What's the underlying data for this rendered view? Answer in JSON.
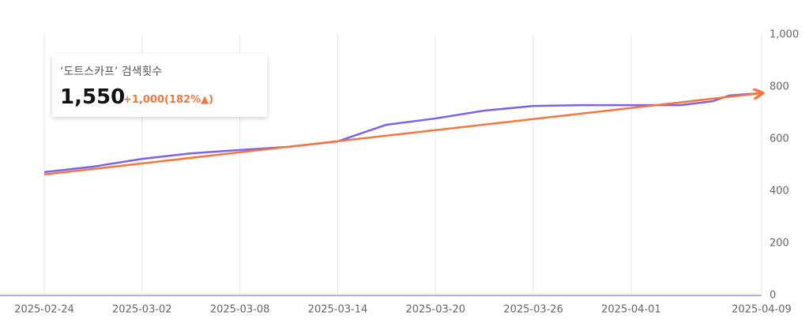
{
  "chart_data": {
    "type": "line",
    "annotation": {
      "label": "‘도트스카프’ 검색횟수",
      "value": "1,550",
      "change": "+1,000(182%▲)"
    },
    "x": [
      "2025-02-24",
      "2025-02-27",
      "2025-03-02",
      "2025-03-05",
      "2025-03-08",
      "2025-03-11",
      "2025-03-14",
      "2025-03-17",
      "2025-03-20",
      "2025-03-23",
      "2025-03-26",
      "2025-03-29",
      "2025-04-01",
      "2025-04-04",
      "2025-04-06",
      "2025-04-07",
      "2025-04-09"
    ],
    "series": [
      {
        "color": "#7b61f0",
        "values": [
          473,
          494,
          524,
          545,
          558,
          570,
          591,
          655,
          679,
          709,
          727,
          730,
          730,
          730,
          745,
          767,
          776
        ]
      },
      {
        "color": "#f5753b",
        "x": [
          "2025-02-24",
          "2025-04-09"
        ],
        "values": [
          464,
          776
        ],
        "arrow": true
      }
    ],
    "xlim": [
      "2025-02-24",
      "2025-04-09"
    ],
    "xticks": [
      "2025-02-24",
      "2025-03-02",
      "2025-03-08",
      "2025-03-14",
      "2025-03-20",
      "2025-03-26",
      "2025-04-01",
      "2025-04-09"
    ],
    "ylim": [
      0,
      1000
    ],
    "yticks": [
      0,
      200,
      400,
      600,
      800,
      {
        "value": 1000,
        "label": "1,000"
      }
    ],
    "grid": true
  }
}
